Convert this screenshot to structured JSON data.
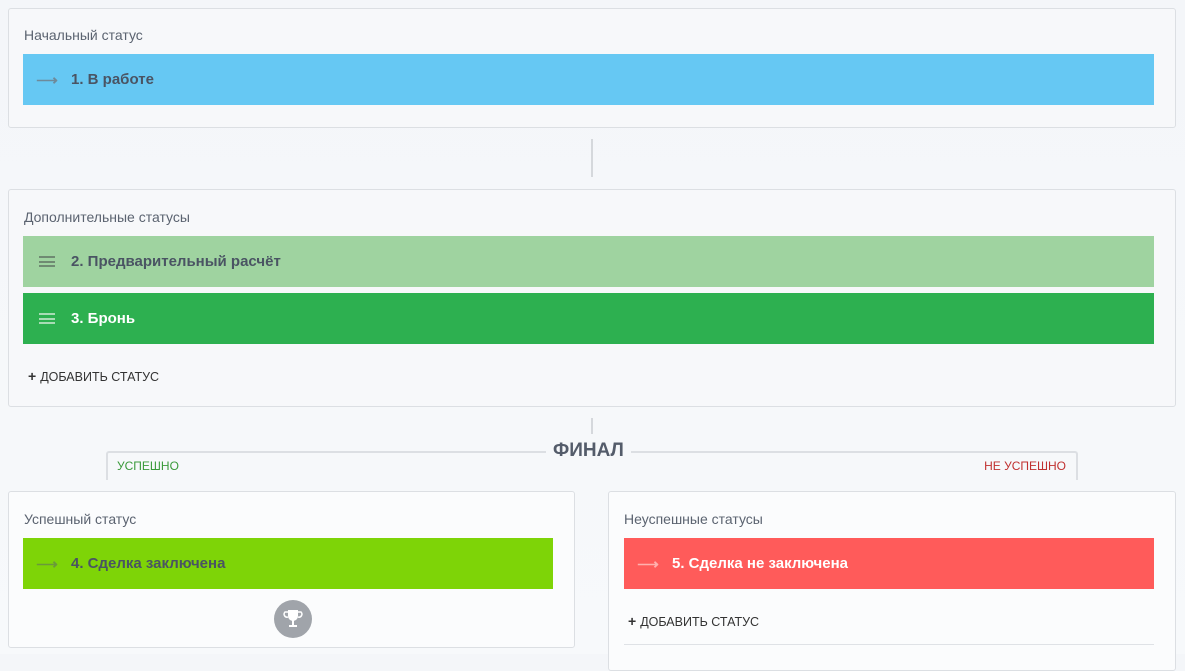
{
  "initial": {
    "label": "Начальный статус",
    "status": {
      "text": "1. В работе",
      "color": "#66c8f3",
      "icon": "arrow-right-icon"
    }
  },
  "additional": {
    "label": "Дополнительные статусы",
    "statuses": [
      {
        "text": "2. Предварительный расчёт",
        "color": "#9fd3a0",
        "icon": "drag-handle-icon"
      },
      {
        "text": "3. Бронь",
        "color": "#2db050",
        "icon": "drag-handle-icon"
      }
    ],
    "add_label": "ДОБАВИТЬ СТАТУС"
  },
  "final": {
    "title": "ФИНАЛ",
    "success_tab": "УСПЕШНО",
    "fail_tab": "НЕ УСПЕШНО"
  },
  "success": {
    "label": "Успешный статус",
    "status": {
      "text": "4. Сделка заключена",
      "color": "#7ed407",
      "icon": "arrow-right-icon"
    },
    "icon": "trophy-icon"
  },
  "fail": {
    "label": "Неуспешные статусы",
    "status": {
      "text": "5. Сделка не заключена",
      "color": "#ff5b5a",
      "icon": "arrow-right-icon"
    },
    "add_label": "ДОБАВИТЬ СТАТУС"
  }
}
